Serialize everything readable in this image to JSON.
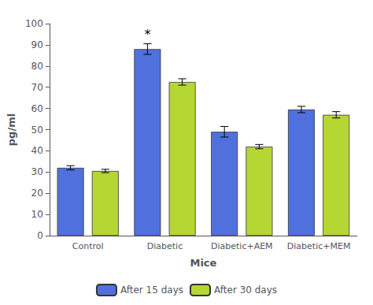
{
  "chart_data": {
    "type": "bar",
    "xlabel": "Mice",
    "ylabel": "pg/ml",
    "categories": [
      "Control",
      "Diabetic",
      "Diabetic+AEM",
      "Diabetic+MEM"
    ],
    "series": [
      {
        "name": "After 15 days",
        "values": [
          32,
          88,
          49,
          59.5
        ],
        "errors": [
          1.0,
          2.5,
          2.5,
          1.5
        ]
      },
      {
        "name": "After 30 days",
        "values": [
          30.5,
          72.5,
          42,
          57
        ],
        "errors": [
          0.8,
          1.5,
          1.0,
          1.5
        ]
      }
    ],
    "ylim": [
      0,
      100
    ],
    "yticks": [
      0,
      10,
      20,
      30,
      40,
      50,
      60,
      70,
      80,
      90,
      100
    ],
    "annotations": [
      {
        "text": "*",
        "category": "Diabetic",
        "series": "After 15 days",
        "y": 92
      }
    ],
    "legend": "bottom",
    "grid": false
  }
}
